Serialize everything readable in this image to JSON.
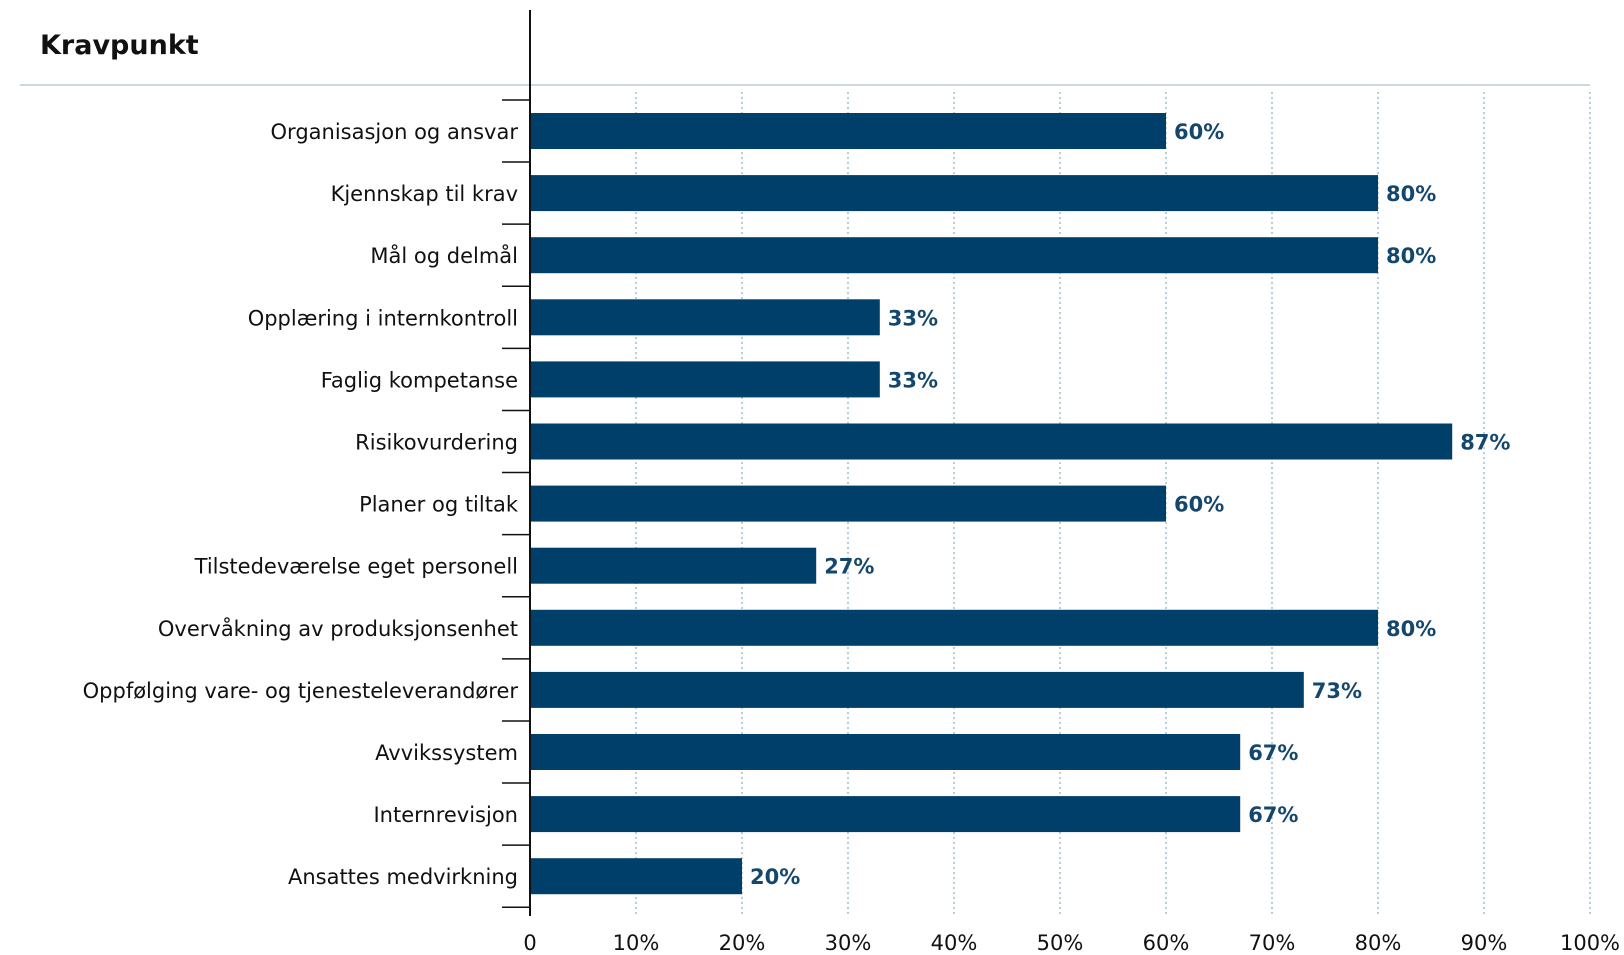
{
  "header": {
    "title": "Kravpunkt"
  },
  "colors": {
    "bar": "#003f6a",
    "value_label": "#14476d",
    "grid": "#8fb3cc",
    "axis": "#111111",
    "header_rule": "#b7cbd8"
  },
  "chart_data": {
    "type": "bar",
    "orientation": "horizontal",
    "categories": [
      "Organisasjon og ansvar",
      "Kjennskap til krav",
      "Mål og delmål",
      "Opplæring i internkontroll",
      "Faglig kompetanse",
      "Risikovurdering",
      "Planer og tiltak",
      "Tilstedeværelse eget personell",
      "Overvåkning av produksjonsenhet",
      "Oppfølging vare- og tjenesteleverandører",
      "Avvikssystem",
      "Internrevisjon",
      "Ansattes medvirkning"
    ],
    "values": [
      60,
      80,
      80,
      33,
      33,
      87,
      60,
      27,
      80,
      73,
      67,
      67,
      20
    ],
    "value_labels": [
      "60%",
      "80%",
      "80%",
      "33%",
      "33%",
      "87%",
      "60%",
      "27%",
      "80%",
      "73%",
      "67%",
      "67%",
      "20%"
    ],
    "xlim": [
      0,
      100
    ],
    "x_ticks": [
      0,
      10,
      20,
      30,
      40,
      50,
      60,
      70,
      80,
      90,
      100
    ],
    "x_tick_labels": [
      "0",
      "10%",
      "20%",
      "30%",
      "40%",
      "50%",
      "60%",
      "70%",
      "80%",
      "90%",
      "100%"
    ],
    "grid": "vertical dotted",
    "legend": "none"
  }
}
